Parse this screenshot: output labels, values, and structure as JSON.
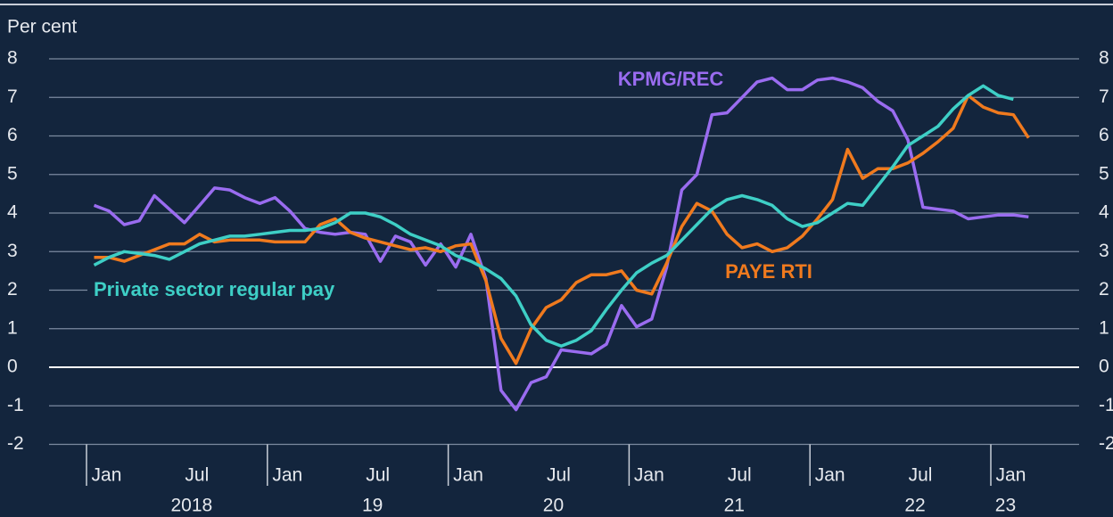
{
  "chart_data": {
    "type": "line",
    "y_label": "Per cent",
    "categories": [
      "Jan",
      null,
      null,
      null,
      null,
      null,
      "Jul",
      null,
      null,
      null,
      null,
      null,
      "Jan",
      null,
      null,
      null,
      null,
      null,
      "Jul",
      null,
      null,
      null,
      null,
      null,
      "Jan",
      null,
      null,
      null,
      null,
      null,
      "Jul",
      null,
      null,
      null,
      null,
      null,
      "Jan",
      null,
      null,
      null,
      null,
      null,
      "Jul",
      null,
      null,
      null,
      null,
      null,
      "Jan",
      null,
      null,
      null,
      null,
      null,
      "Jul",
      null,
      null,
      null,
      null,
      null,
      "Jan",
      null,
      null
    ],
    "year_labels": [
      "2018",
      "19",
      "20",
      "21",
      "22",
      "23"
    ],
    "ylim": [
      -2,
      8
    ],
    "yticks": [
      -2,
      -1,
      0,
      1,
      2,
      3,
      4,
      5,
      6,
      7,
      8
    ],
    "grid": true,
    "series": [
      {
        "name": "KPMG/REC",
        "color": "#9a6cf0",
        "values": [
          4.2,
          4.05,
          3.7,
          3.8,
          4.45,
          4.1,
          3.75,
          4.2,
          4.65,
          4.6,
          4.4,
          4.25,
          4.4,
          4.05,
          3.6,
          3.5,
          3.45,
          3.5,
          3.45,
          2.75,
          3.4,
          3.25,
          2.65,
          3.2,
          2.6,
          3.45,
          2.3,
          -0.6,
          -1.1,
          -0.4,
          -0.25,
          0.45,
          0.4,
          0.35,
          0.6,
          1.6,
          1.05,
          1.25,
          2.6,
          4.6,
          5.0,
          6.55,
          6.6,
          7.0,
          7.4,
          7.5,
          7.2,
          7.2,
          7.45,
          7.5,
          7.4,
          7.25,
          6.9,
          6.65,
          5.9,
          4.15,
          4.1,
          4.05,
          3.85,
          3.9,
          3.95,
          3.95,
          3.9
        ]
      },
      {
        "name": "PAYE RTI",
        "color": "#f07a1e",
        "values": [
          2.85,
          2.85,
          2.75,
          2.9,
          3.05,
          3.2,
          3.2,
          3.45,
          3.25,
          3.3,
          3.3,
          3.3,
          3.25,
          3.25,
          3.25,
          3.7,
          3.85,
          3.5,
          3.35,
          3.25,
          3.15,
          3.05,
          3.1,
          3.0,
          3.15,
          3.2,
          2.25,
          0.75,
          0.1,
          1.0,
          1.55,
          1.75,
          2.2,
          2.4,
          2.4,
          2.5,
          2.0,
          1.9,
          2.7,
          3.65,
          4.25,
          4.05,
          3.45,
          3.1,
          3.2,
          3.0,
          3.1,
          3.4,
          3.85,
          4.35,
          5.65,
          4.9,
          5.15,
          5.15,
          5.3,
          5.55,
          5.85,
          6.2,
          7.05,
          6.75,
          6.6,
          6.55,
          5.95
        ]
      },
      {
        "name": "Private sector regular pay",
        "color": "#3ecfc6",
        "values": [
          2.65,
          2.85,
          3.0,
          2.95,
          2.9,
          2.8,
          3.0,
          3.2,
          3.3,
          3.4,
          3.4,
          3.45,
          3.5,
          3.55,
          3.55,
          3.6,
          3.75,
          4.0,
          4.0,
          3.9,
          3.7,
          3.45,
          3.3,
          3.15,
          2.9,
          2.75,
          2.55,
          2.3,
          1.85,
          1.1,
          0.7,
          0.55,
          0.7,
          0.95,
          1.5,
          2.0,
          2.45,
          2.7,
          2.9,
          3.3,
          3.7,
          4.1,
          4.35,
          4.45,
          4.35,
          4.2,
          3.85,
          3.65,
          3.75,
          4.0,
          4.25,
          4.2,
          4.7,
          5.2,
          5.75,
          6.0,
          6.25,
          6.7,
          7.05,
          7.3,
          7.05,
          6.95,
          null
        ]
      }
    ]
  }
}
